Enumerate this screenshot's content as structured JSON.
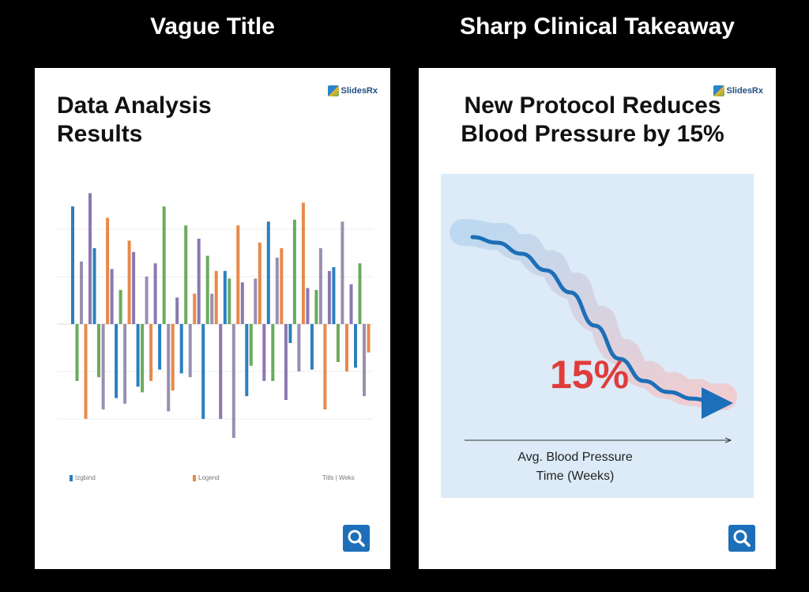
{
  "headings": {
    "left": "Vague Title",
    "right": "Sharp Clinical Takeaway"
  },
  "left_panel": {
    "title_lines": [
      "Data Analysis",
      "Results"
    ],
    "logo_text": "SlidesRx",
    "legend": [
      "Izgbind",
      "Logend",
      "Titls | Weks"
    ],
    "zoom_icon": "magnifier-icon"
  },
  "right_panel": {
    "title_lines": [
      "New Protocol Reduces",
      "Blood Pressure by 15%"
    ],
    "logo_text": "SlidesRx",
    "callout": "15%",
    "ylabel": "Avg. Blood Pressure",
    "xlabel": "Time (Weeks)",
    "zoom_icon": "magnifier-icon"
  },
  "colors": {
    "accent_blue": "#1c6fb8",
    "callout_red": "#e03c3c",
    "chart_bg": "#dcebf7",
    "series": [
      "#2b7fc0",
      "#e8894a",
      "#d9534f",
      "#6aab5c",
      "#8b78b0",
      "#7ab8e0",
      "#9a8fb0",
      "#c29a6a"
    ]
  },
  "chart_data": [
    {
      "type": "bar",
      "title": "Data Analysis Results",
      "values": [
        62,
        -30,
        33,
        -50,
        69,
        40,
        -28,
        -45,
        56,
        29,
        -39,
        18,
        -42,
        44,
        38,
        -33,
        -36,
        25,
        -30,
        32,
        -24,
        62,
        -46,
        -35,
        14,
        -26,
        52,
        -28,
        16,
        45,
        -50,
        36,
        16,
        28,
        -50,
        28,
        24,
        -60,
        52,
        22,
        -38,
        -22,
        24,
        43,
        -30,
        54,
        -30,
        35,
        40,
        -40,
        -10,
        55,
        -25,
        64,
        19,
        -24,
        18,
        40,
        -45,
        28,
        30,
        -20,
        54,
        -25,
        21,
        -23,
        32,
        -38,
        -15
      ],
      "legend": [
        "Izgbind",
        "Logend",
        "Titls | Weks"
      ]
    },
    {
      "type": "line",
      "title": "New Protocol Reduces Blood Pressure by 15%",
      "xlabel": "Time (Weeks)",
      "ylabel": "Avg. Blood Pressure",
      "x": [
        0,
        1,
        2,
        3,
        4,
        5,
        6,
        7,
        8,
        9,
        10
      ],
      "values": [
        100,
        99.5,
        98.5,
        97,
        95,
        92,
        89,
        87,
        86,
        85.4,
        85
      ],
      "annotations": [
        "15%"
      ]
    }
  ]
}
